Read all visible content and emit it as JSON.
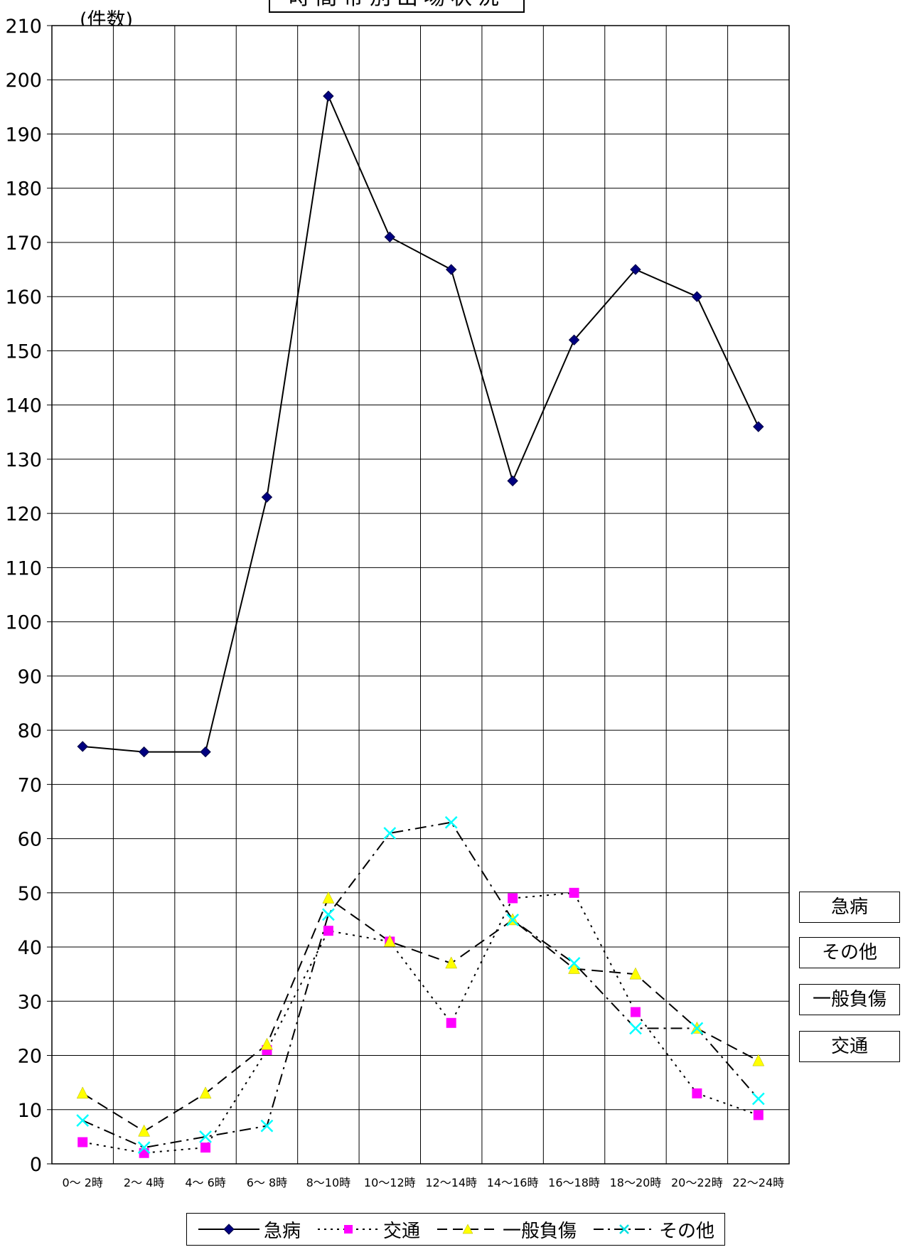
{
  "chart_data": {
    "type": "line",
    "title": "時間帯別出場状況",
    "ylabel": "(件数)",
    "xlabel": "",
    "ylim": [
      0,
      210
    ],
    "y_ticks": [
      0,
      10,
      20,
      30,
      40,
      50,
      60,
      70,
      80,
      90,
      100,
      110,
      120,
      130,
      140,
      150,
      160,
      170,
      180,
      190,
      200,
      210
    ],
    "grid": true,
    "legend_position": "bottom",
    "categories": [
      "0～ 2時",
      "2～ 4時",
      "4～ 6時",
      "6～ 8時",
      "8～10時",
      "10～12時",
      "12～14時",
      "14～16時",
      "16～18時",
      "18～20時",
      "20～22時",
      "22～24時"
    ],
    "series": [
      {
        "name": "急病",
        "values": [
          77,
          76,
          76,
          123,
          197,
          171,
          165,
          126,
          152,
          165,
          160,
          136
        ],
        "color": "#000080",
        "line_color": "#000000",
        "marker": "diamond",
        "dash": "solid"
      },
      {
        "name": "交通",
        "values": [
          4,
          2,
          3,
          21,
          43,
          41,
          26,
          49,
          50,
          28,
          13,
          9
        ],
        "color": "#ff00ff",
        "line_color": "#000000",
        "marker": "square",
        "dash": "dotted"
      },
      {
        "name": "一般負傷",
        "values": [
          13,
          6,
          13,
          22,
          49,
          41,
          37,
          45,
          36,
          35,
          25,
          19
        ],
        "color": "#ffff00",
        "line_color": "#000000",
        "marker": "triangle",
        "dash": "dashed"
      },
      {
        "name": "その他",
        "values": [
          8,
          3,
          5,
          7,
          46,
          61,
          63,
          45,
          37,
          25,
          25,
          12
        ],
        "color": "#00ffff",
        "line_color": "#000000",
        "marker": "x",
        "dash": "dashdot"
      }
    ],
    "side_labels": [
      "急病",
      "その他",
      "一般負傷",
      "交通"
    ]
  }
}
